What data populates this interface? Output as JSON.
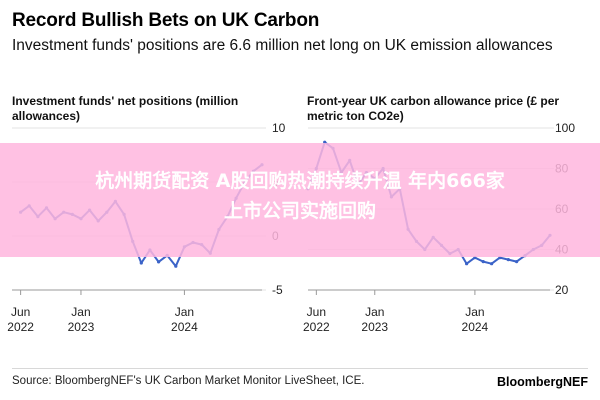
{
  "header": {
    "title": "Record Bullish Bets on UK Carbon",
    "subtitle": "Investment funds' positions are 6.6 million net long on UK emission allowances"
  },
  "banner": {
    "line1": "杭州期货配资 A股回购热潮持续升温 年内666家",
    "line2": "上市公司实施回购"
  },
  "footer": {
    "source": "Source: BloombergNEF's UK Carbon Market Monitor LiveSheet, ICE.",
    "brand": "BloombergNEF"
  },
  "colors": {
    "line": "#3b63c8",
    "grid": "#e3e3e3",
    "banner": "#ffb6de"
  },
  "chart_data": [
    {
      "type": "line",
      "title": "Investment funds' net positions (million allowances)",
      "ylim": [
        -5,
        10
      ],
      "yticks": [
        "10",
        "5",
        "0",
        "-5"
      ],
      "xlim": [
        "2022-05",
        "2024-10"
      ],
      "xticks": [
        {
          "month": "Jun",
          "year": "2022",
          "x": "2022-06"
        },
        {
          "month": "Jan",
          "year": "2023",
          "x": "2023-01"
        },
        {
          "month": "Jan",
          "year": "2024",
          "x": "2024-01"
        }
      ],
      "grid": true,
      "series": [
        {
          "x": [
            "2022-06",
            "2022-07",
            "2022-08",
            "2022-09",
            "2022-10",
            "2022-11",
            "2022-12",
            "2023-01",
            "2023-02",
            "2023-03",
            "2023-04",
            "2023-05",
            "2023-06",
            "2023-07",
            "2023-08",
            "2023-09",
            "2023-10",
            "2023-11",
            "2023-12",
            "2024-01",
            "2024-02",
            "2024-03",
            "2024-04",
            "2024-05",
            "2024-06",
            "2024-07",
            "2024-08",
            "2024-09",
            "2024-10"
          ],
          "values": [
            2.2,
            2.8,
            1.8,
            2.6,
            1.6,
            2.2,
            2.0,
            1.6,
            2.4,
            1.4,
            2.2,
            3.2,
            2.0,
            -0.5,
            -2.5,
            -1.3,
            -2.4,
            -1.8,
            -2.8,
            -1.0,
            -0.6,
            -0.8,
            -1.6,
            0.6,
            1.8,
            3.5,
            5.0,
            6.0,
            6.6
          ]
        }
      ]
    },
    {
      "type": "line",
      "title": "Front-year UK carbon allowance price (£ per metric ton CO2e)",
      "ylim": [
        20,
        100
      ],
      "yticks": [
        "100",
        "80",
        "60",
        "40",
        "20"
      ],
      "xlim": [
        "2022-05",
        "2024-10"
      ],
      "xticks": [
        {
          "month": "Jun",
          "year": "2022",
          "x": "2022-06"
        },
        {
          "month": "Jan",
          "year": "2023",
          "x": "2023-01"
        },
        {
          "month": "Jan",
          "year": "2024",
          "x": "2024-01"
        }
      ],
      "grid": true,
      "series": [
        {
          "x": [
            "2022-05",
            "2022-06",
            "2022-07",
            "2022-08",
            "2022-09",
            "2022-10",
            "2022-11",
            "2022-12",
            "2023-01",
            "2023-02",
            "2023-03",
            "2023-04",
            "2023-05",
            "2023-06",
            "2023-07",
            "2023-08",
            "2023-09",
            "2023-10",
            "2023-11",
            "2023-12",
            "2024-01",
            "2024-02",
            "2024-03",
            "2024-04",
            "2024-05",
            "2024-06",
            "2024-07",
            "2024-08",
            "2024-09",
            "2024-10"
          ],
          "values": [
            70,
            80,
            93,
            90,
            78,
            84,
            72,
            78,
            75,
            80,
            66,
            70,
            50,
            44,
            40,
            46,
            42,
            38,
            40,
            33,
            36,
            34,
            33,
            36,
            35,
            34,
            37,
            40,
            42,
            47
          ]
        }
      ]
    }
  ]
}
